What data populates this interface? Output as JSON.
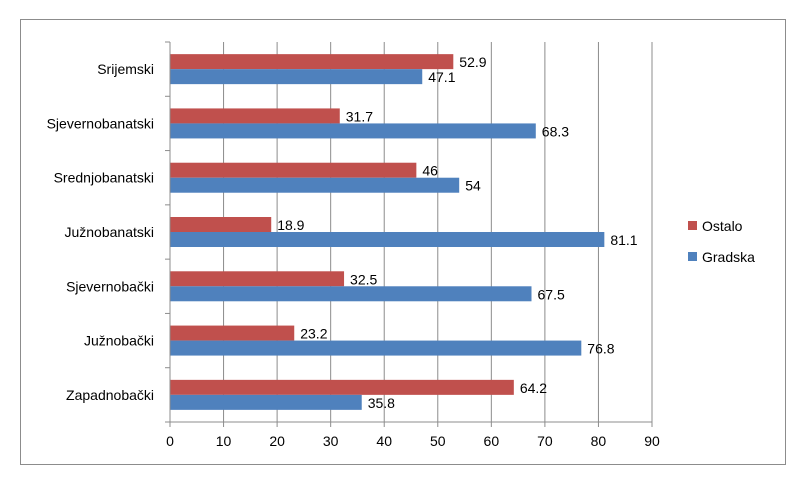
{
  "chart_data": {
    "type": "bar",
    "orientation": "horizontal",
    "categories": [
      "Srijemski",
      "Sjevernobanatski",
      "Srednjobanatski",
      "Južnobanatski",
      "Sjevernobački",
      "Južnobački",
      "Zapadnobački"
    ],
    "series": [
      {
        "name": "Ostalo",
        "color": "#c0504d",
        "values": [
          52.9,
          31.7,
          46,
          18.9,
          32.5,
          23.2,
          64.2
        ]
      },
      {
        "name": "Gradska",
        "color": "#4f81bd",
        "values": [
          47.1,
          68.3,
          54,
          81.1,
          67.5,
          76.8,
          35.8
        ]
      }
    ],
    "data_labels": {
      "Ostalo": [
        "52.9",
        "31.7",
        "46",
        "18.9",
        "32.5",
        "23.2",
        "64.2"
      ],
      "Gradska": [
        "47.1",
        "68.3",
        "54",
        "81.1",
        "67.5",
        "76.8",
        "35.8"
      ]
    },
    "xlim": [
      0,
      90
    ],
    "x_ticks": [
      "0",
      "10",
      "20",
      "30",
      "40",
      "50",
      "60",
      "70",
      "80",
      "90"
    ],
    "grid": "vertical",
    "legend_position": "right",
    "title": "",
    "xlabel": "",
    "ylabel": ""
  }
}
